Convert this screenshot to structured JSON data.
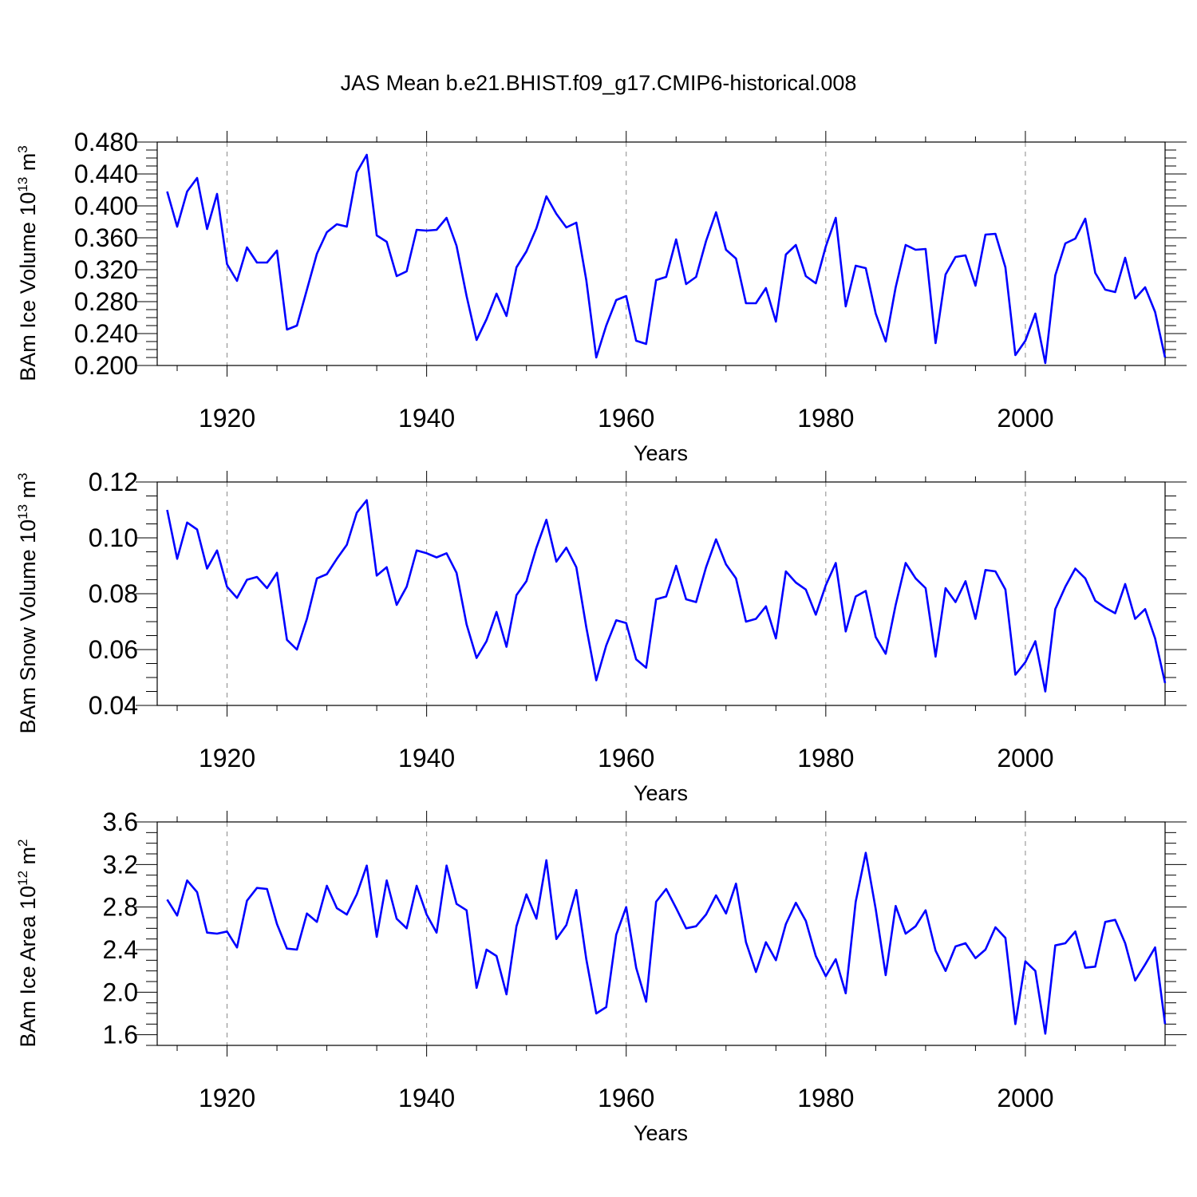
{
  "title": "JAS Mean b.e21.BHIST.f09_g17.CMIP6-historical.008",
  "line_color": "#0000ff",
  "chart_data": [
    {
      "type": "line",
      "ylabel": {
        "pre": "BAm Ice Volume 10",
        "sup": "13",
        "post": " m",
        "sup2": "3"
      },
      "xlabel": "Years",
      "xlim": [
        1913,
        2014
      ],
      "ylim": [
        0.2,
        0.48
      ],
      "yticks": [
        "0.200",
        "0.240",
        "0.280",
        "0.320",
        "0.360",
        "0.400",
        "0.440",
        "0.480"
      ],
      "xticks": [
        "1920",
        "1940",
        "1960",
        "1980",
        "2000"
      ],
      "x_start": 1914,
      "values": [
        0.418,
        0.374,
        0.418,
        0.435,
        0.371,
        0.415,
        0.327,
        0.306,
        0.348,
        0.329,
        0.329,
        0.344,
        0.245,
        0.25,
        0.295,
        0.34,
        0.367,
        0.377,
        0.374,
        0.442,
        0.464,
        0.363,
        0.355,
        0.312,
        0.318,
        0.37,
        0.369,
        0.37,
        0.385,
        0.35,
        0.287,
        0.232,
        0.258,
        0.29,
        0.262,
        0.323,
        0.343,
        0.372,
        0.412,
        0.39,
        0.373,
        0.379,
        0.307,
        0.21,
        0.25,
        0.282,
        0.287,
        0.231,
        0.227,
        0.307,
        0.311,
        0.358,
        0.302,
        0.311,
        0.356,
        0.392,
        0.345,
        0.334,
        0.278,
        0.278,
        0.297,
        0.255,
        0.339,
        0.351,
        0.312,
        0.303,
        0.349,
        0.385,
        0.274,
        0.325,
        0.322,
        0.265,
        0.23,
        0.298,
        0.351,
        0.345,
        0.346,
        0.228,
        0.314,
        0.336,
        0.338,
        0.3,
        0.364,
        0.365,
        0.323,
        0.213,
        0.231,
        0.265,
        0.203,
        0.313,
        0.353,
        0.359,
        0.384,
        0.316,
        0.295,
        0.292,
        0.335,
        0.284,
        0.298,
        0.267,
        0.21
      ]
    },
    {
      "type": "line",
      "ylabel": {
        "pre": "BAm Snow Volume 10",
        "sup": "13",
        "post": " m",
        "sup2": "3"
      },
      "xlabel": "Years",
      "xlim": [
        1913,
        2014
      ],
      "ylim": [
        0.04,
        0.12
      ],
      "yticks": [
        "0.04",
        "0.06",
        "0.08",
        "0.10",
        "0.12"
      ],
      "xticks": [
        "1920",
        "1940",
        "1960",
        "1980",
        "2000"
      ],
      "x_start": 1914,
      "values": [
        0.11,
        0.0925,
        0.1055,
        0.103,
        0.089,
        0.0955,
        0.0825,
        0.0785,
        0.085,
        0.086,
        0.082,
        0.0875,
        0.0635,
        0.06,
        0.071,
        0.0855,
        0.087,
        0.0925,
        0.0975,
        0.109,
        0.1135,
        0.0865,
        0.0895,
        0.076,
        0.0825,
        0.0955,
        0.0945,
        0.093,
        0.0945,
        0.0875,
        0.069,
        0.057,
        0.063,
        0.0735,
        0.061,
        0.0795,
        0.0845,
        0.0965,
        0.1065,
        0.0915,
        0.0965,
        0.0895,
        0.068,
        0.049,
        0.0615,
        0.0705,
        0.0695,
        0.0565,
        0.0535,
        0.078,
        0.079,
        0.09,
        0.078,
        0.077,
        0.0895,
        0.0995,
        0.0905,
        0.0855,
        0.07,
        0.071,
        0.0755,
        0.064,
        0.088,
        0.084,
        0.0815,
        0.0725,
        0.083,
        0.091,
        0.0665,
        0.079,
        0.081,
        0.0645,
        0.0585,
        0.076,
        0.091,
        0.0855,
        0.082,
        0.0575,
        0.082,
        0.077,
        0.0845,
        0.071,
        0.0885,
        0.088,
        0.0815,
        0.051,
        0.0555,
        0.063,
        0.045,
        0.0745,
        0.0825,
        0.089,
        0.0855,
        0.0775,
        0.075,
        0.073,
        0.0835,
        0.071,
        0.0745,
        0.064,
        0.048
      ]
    },
    {
      "type": "line",
      "ylabel": {
        "pre": "BAm Ice Area 10",
        "sup": "12",
        "post": " m",
        "sup2": "2"
      },
      "xlabel": "Years",
      "xlim": [
        1913,
        2014
      ],
      "ylim": [
        1.5,
        3.6
      ],
      "yticks": [
        "1.6",
        "2.0",
        "2.4",
        "2.8",
        "3.2",
        "3.6"
      ],
      "xticks": [
        "1920",
        "1940",
        "1960",
        "1980",
        "2000"
      ],
      "x_start": 1914,
      "values": [
        2.87,
        2.72,
        3.05,
        2.94,
        2.56,
        2.55,
        2.57,
        2.42,
        2.86,
        2.98,
        2.97,
        2.64,
        2.41,
        2.4,
        2.74,
        2.66,
        3.0,
        2.79,
        2.73,
        2.92,
        3.19,
        2.52,
        3.05,
        2.69,
        2.6,
        3.0,
        2.73,
        2.56,
        3.19,
        2.83,
        2.77,
        2.04,
        2.4,
        2.34,
        1.98,
        2.62,
        2.92,
        2.69,
        3.24,
        2.5,
        2.63,
        2.96,
        2.31,
        1.8,
        1.86,
        2.54,
        2.8,
        2.23,
        1.91,
        2.85,
        2.97,
        2.79,
        2.6,
        2.62,
        2.73,
        2.91,
        2.74,
        3.02,
        2.47,
        2.19,
        2.47,
        2.3,
        2.64,
        2.84,
        2.67,
        2.34,
        2.15,
        2.31,
        1.99,
        2.85,
        3.31,
        2.78,
        2.16,
        2.81,
        2.55,
        2.62,
        2.77,
        2.39,
        2.2,
        2.43,
        2.46,
        2.32,
        2.4,
        2.61,
        2.51,
        1.7,
        2.29,
        2.2,
        1.61,
        2.44,
        2.46,
        2.57,
        2.23,
        2.24,
        2.66,
        2.68,
        2.46,
        2.11,
        2.26,
        2.42,
        1.7
      ]
    }
  ]
}
